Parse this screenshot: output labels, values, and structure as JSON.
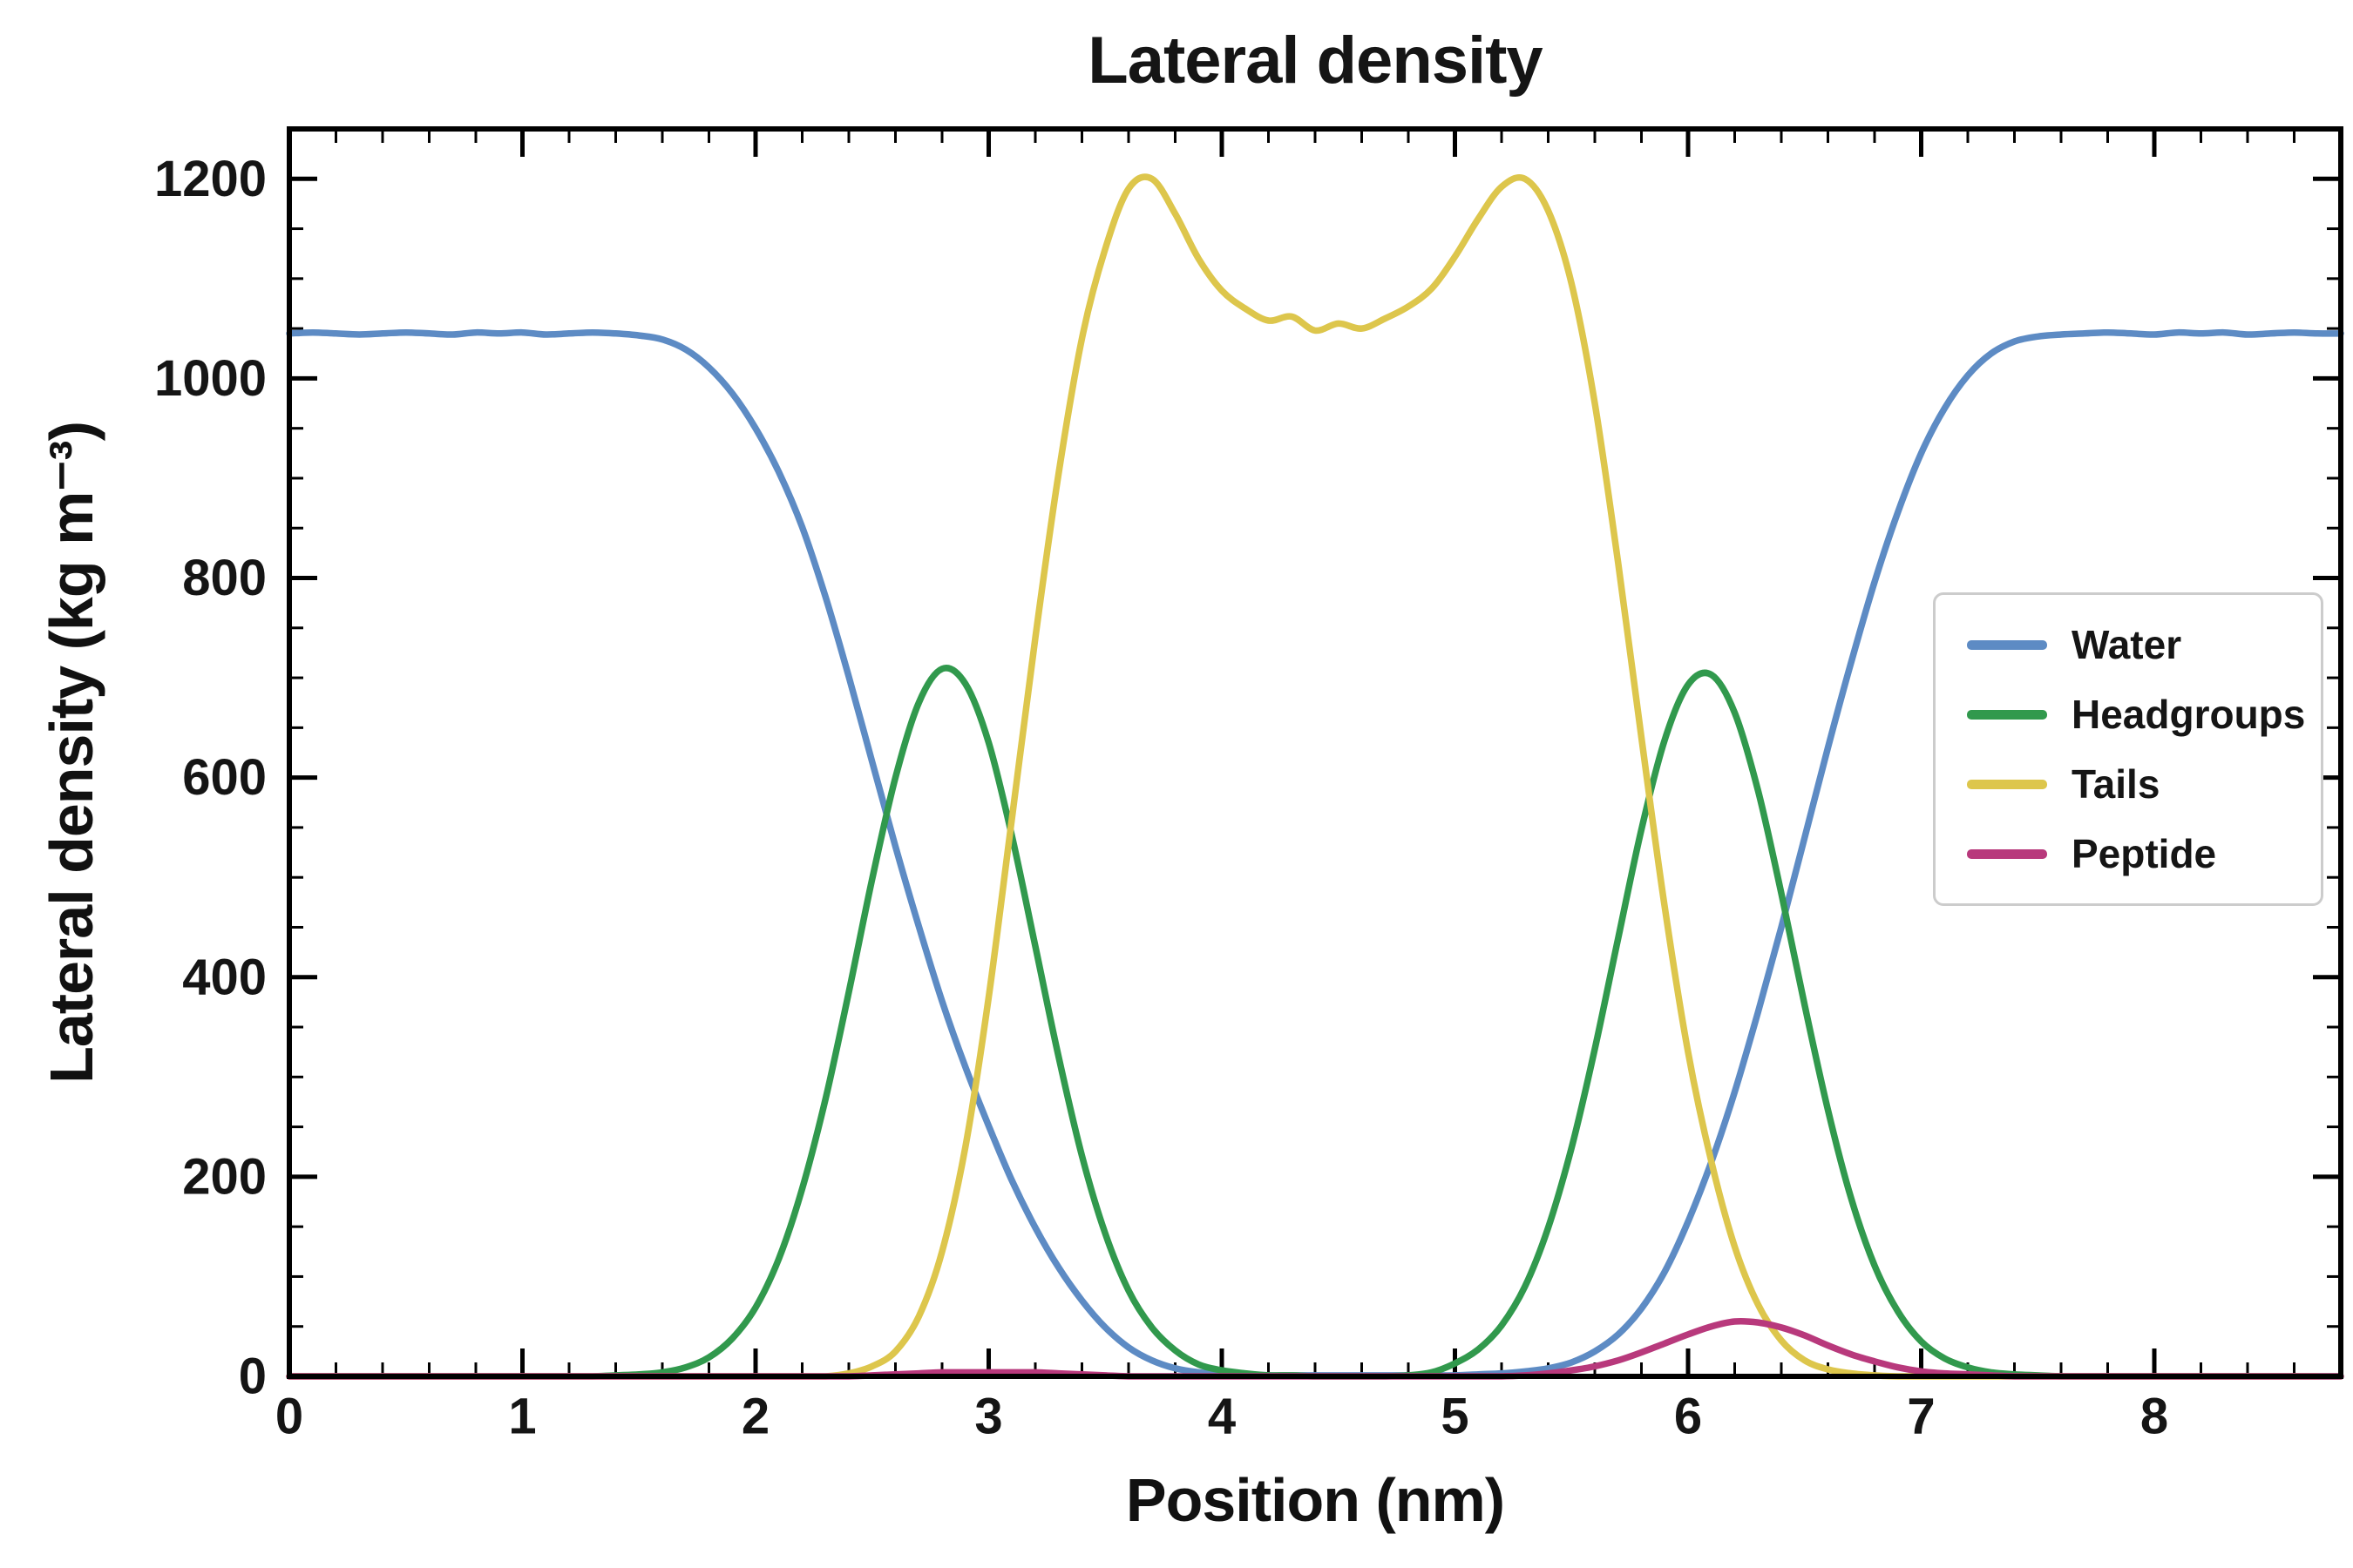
{
  "title": "Lateral density",
  "xlabel": "Position (nm)",
  "ylabel": "Lateral density (kg m⁻³)",
  "chart_data": {
    "type": "line",
    "title": "Lateral density",
    "xlabel": "Position (nm)",
    "ylabel": "Lateral density (kg m⁻³)",
    "xlim": [
      0,
      8.8
    ],
    "ylim": [
      0,
      1250
    ],
    "xticks": [
      0,
      1,
      2,
      3,
      4,
      5,
      6,
      7,
      8
    ],
    "yticks": [
      0,
      200,
      400,
      600,
      800,
      1000,
      1200
    ],
    "x_minor_step": 0.2,
    "y_minor_step": 50,
    "grid": false,
    "legend_position": "center right",
    "x_start": 0,
    "x_step": 0.1,
    "series": [
      {
        "name": "Water",
        "color": "#5d8bc4",
        "values": [
          1045,
          1046,
          1045,
          1044,
          1045,
          1046,
          1045,
          1044,
          1046,
          1045,
          1046,
          1044,
          1045,
          1046,
          1045,
          1043,
          1039,
          1029,
          1011,
          985,
          950,
          906,
          851,
          781,
          701,
          616,
          531,
          451,
          376,
          310,
          251,
          196,
          149,
          109,
          76,
          49,
          29,
          16,
          8,
          4,
          2,
          2,
          1,
          1,
          1,
          1,
          1,
          1,
          1,
          1,
          1,
          2,
          3,
          5,
          8,
          14,
          25,
          42,
          68,
          105,
          155,
          215,
          285,
          365,
          450,
          540,
          630,
          716,
          796,
          866,
          925,
          970,
          1003,
          1025,
          1037,
          1042,
          1044,
          1045,
          1046,
          1045,
          1044,
          1046,
          1045,
          1046,
          1044,
          1045,
          1046,
          1045,
          1045
        ]
      },
      {
        "name": "Headgroups",
        "color": "#31994d",
        "values": [
          0,
          0,
          0,
          0,
          0,
          0,
          0,
          0,
          0,
          0,
          0,
          0,
          0,
          0,
          1,
          2,
          4,
          9,
          19,
          38,
          69,
          118,
          188,
          278,
          385,
          498,
          600,
          675,
          709,
          694,
          635,
          541,
          431,
          320,
          221,
          143,
          86,
          49,
          26,
          12,
          6,
          3,
          1,
          1,
          0,
          0,
          0,
          0,
          1,
          4,
          13,
          27,
          51,
          90,
          149,
          229,
          328,
          439,
          548,
          638,
          693,
          703,
          665,
          587,
          484,
          372,
          267,
          178,
          111,
          65,
          35,
          18,
          9,
          4,
          2,
          1,
          0,
          0,
          0,
          0,
          0,
          0,
          0,
          0,
          0,
          0,
          0,
          0,
          0
        ]
      },
      {
        "name": "Tails",
        "color": "#ddc64c",
        "values": [
          0,
          0,
          0,
          0,
          0,
          0,
          0,
          0,
          0,
          0,
          0,
          0,
          0,
          0,
          0,
          0,
          0,
          0,
          0,
          0,
          0,
          0,
          0,
          0,
          3,
          10,
          25,
          60,
          125,
          230,
          380,
          560,
          740,
          905,
          1040,
          1130,
          1190,
          1200,
          1165,
          1120,
          1088,
          1070,
          1058,
          1062,
          1048,
          1055,
          1050,
          1060,
          1072,
          1090,
          1122,
          1160,
          1192,
          1200,
          1168,
          1095,
          975,
          815,
          640,
          470,
          325,
          215,
          130,
          72,
          36,
          16,
          7,
          3,
          1,
          0,
          0,
          0,
          0,
          0,
          0,
          0,
          0,
          0,
          0,
          0,
          0,
          0,
          0,
          0,
          0,
          0,
          0,
          0
        ]
      },
      {
        "name": "Peptide",
        "color": "#b8397c",
        "values": [
          0,
          0,
          0,
          0,
          0,
          0,
          0,
          0,
          0,
          0,
          0,
          0,
          0,
          0,
          0,
          0,
          0,
          0,
          0,
          0,
          0,
          0,
          0,
          0,
          0,
          1,
          2,
          3,
          4,
          4,
          4,
          4,
          4,
          3,
          2,
          1,
          0,
          0,
          0,
          0,
          0,
          0,
          0,
          0,
          0,
          0,
          0,
          0,
          0,
          0,
          0,
          0,
          0,
          1,
          3,
          6,
          10,
          16,
          24,
          33,
          42,
          50,
          55,
          54,
          49,
          41,
          31,
          22,
          15,
          9,
          5,
          3,
          2,
          1,
          0,
          0,
          0,
          0,
          0,
          0,
          0,
          0,
          0,
          0,
          0,
          0,
          0,
          0,
          0
        ]
      }
    ]
  },
  "legend": {
    "items": [
      {
        "label": "Water"
      },
      {
        "label": "Headgroups"
      },
      {
        "label": "Tails"
      },
      {
        "label": "Peptide"
      }
    ]
  }
}
